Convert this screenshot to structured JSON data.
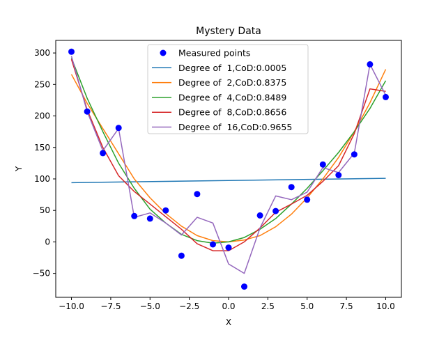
{
  "chart_data": {
    "type": "scatter",
    "title": "Mystery Data",
    "xlabel": "X",
    "ylabel": "Y",
    "xlim": [
      -11,
      11
    ],
    "ylim": [
      -88,
      320
    ],
    "grid": false,
    "legend_placement": "top-center",
    "x_ticks": [
      -10,
      -7.5,
      -5,
      -2.5,
      0,
      2.5,
      5,
      7.5,
      10
    ],
    "x_tick_labels": [
      "−10.0",
      "−7.5",
      "−5.0",
      "−2.5",
      "0.0",
      "2.5",
      "5.0",
      "7.5",
      "10.0"
    ],
    "y_ticks": [
      -50,
      0,
      50,
      100,
      150,
      200,
      250,
      300
    ],
    "y_tick_labels": [
      "−50",
      "0",
      "50",
      "100",
      "150",
      "200",
      "250",
      "300"
    ],
    "points": {
      "name": "Measured points",
      "color": "#0000ff",
      "x": [
        -10,
        -9,
        -8,
        -7,
        -6,
        -5,
        -4,
        -3,
        -2,
        -1,
        0,
        1,
        2,
        3,
        4,
        5,
        6,
        7,
        8,
        9,
        10
      ],
      "y": [
        302,
        207,
        141,
        181,
        41,
        37,
        50,
        -22,
        76,
        -4,
        -9,
        -71,
        42,
        49,
        87,
        67,
        123,
        106,
        139,
        282,
        230
      ]
    },
    "series": [
      {
        "name": "Degree of  1,CoD:0.0005",
        "color": "#1f77b4",
        "x": [
          -10,
          10
        ],
        "y": [
          94,
          101
        ]
      },
      {
        "name": "Degree of  2,CoD:0.8375",
        "color": "#ff7f0e",
        "x": [
          -10,
          -9,
          -8,
          -7,
          -6,
          -5,
          -4,
          -3,
          -2,
          -1,
          0,
          1,
          2,
          3,
          4,
          5,
          6,
          7,
          8,
          9,
          10
        ],
        "y": [
          266,
          220,
          180,
          140,
          100,
          70,
          45,
          25,
          10,
          2,
          0,
          3,
          10,
          24,
          44,
          70,
          100,
          134,
          175,
          221,
          274
        ]
      },
      {
        "name": "Degree of  4,CoD:0.8489",
        "color": "#2ca02c",
        "x": [
          -10,
          -9,
          -8,
          -7,
          -6,
          -5,
          -4,
          -3,
          -2,
          -1,
          0,
          1,
          2,
          3,
          4,
          5,
          6,
          7,
          8,
          9,
          10
        ],
        "y": [
          292,
          228,
          175,
          125,
          85,
          52,
          30,
          12,
          2,
          -2,
          0,
          7,
          20,
          37,
          60,
          85,
          113,
          142,
          175,
          212,
          256
        ]
      },
      {
        "name": "Degree of  8,CoD:0.8656",
        "color": "#d62728",
        "x": [
          -10,
          -9,
          -8,
          -7,
          -6,
          -5,
          -4,
          -3,
          -2,
          -1,
          0,
          1,
          2,
          3,
          4,
          5,
          6,
          7,
          8,
          9,
          10
        ],
        "y": [
          290,
          210,
          150,
          105,
          80,
          60,
          40,
          20,
          -3,
          -14,
          -14,
          0,
          22,
          47,
          60,
          74,
          96,
          121,
          172,
          243,
          239
        ]
      },
      {
        "name": "Degree of  16,CoD:0.9655",
        "color": "#9467bd",
        "x": [
          -10,
          -9,
          -8,
          -7,
          -6,
          -5,
          -4,
          -3,
          -2,
          -1,
          0,
          1,
          2,
          3,
          4,
          5,
          6,
          7,
          8,
          9,
          10
        ],
        "y": [
          295,
          207,
          145,
          180,
          39,
          46,
          30,
          11,
          39,
          30,
          -35,
          -50,
          22,
          73,
          67,
          79,
          118,
          110,
          141,
          282,
          233
        ]
      }
    ]
  }
}
